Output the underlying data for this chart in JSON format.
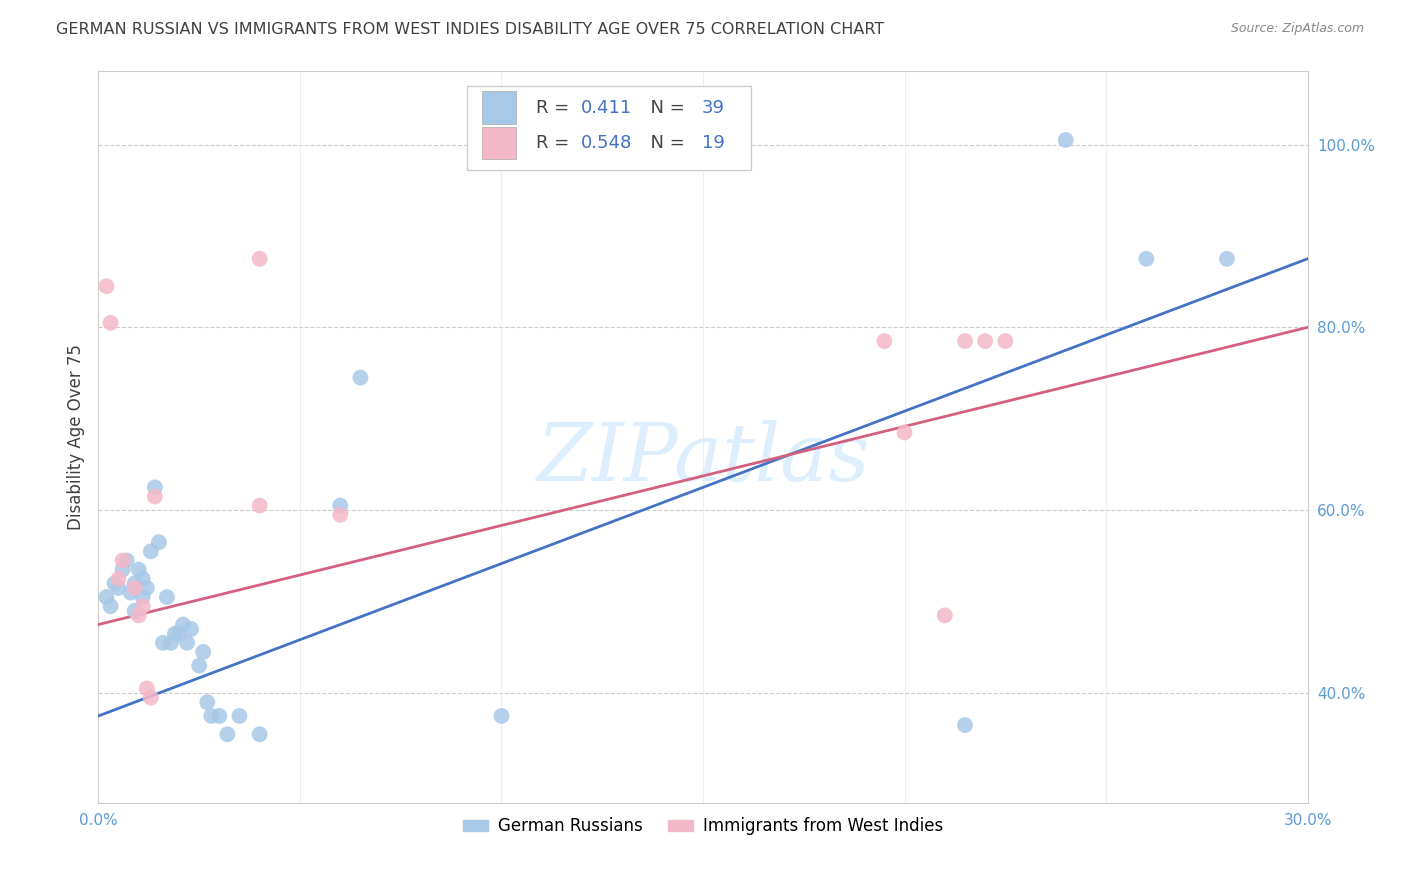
{
  "title": "GERMAN RUSSIAN VS IMMIGRANTS FROM WEST INDIES DISABILITY AGE OVER 75 CORRELATION CHART",
  "source": "Source: ZipAtlas.com",
  "ylabel": "Disability Age Over 75",
  "xlim": [
    0.0,
    0.3
  ],
  "ylim": [
    0.28,
    1.08
  ],
  "x_ticks": [
    0.0,
    0.05,
    0.1,
    0.15,
    0.2,
    0.25,
    0.3
  ],
  "y_ticks_right": [
    0.4,
    0.6,
    0.8,
    1.0
  ],
  "y_tick_labels_right": [
    "40.0%",
    "60.0%",
    "80.0%",
    "100.0%"
  ],
  "blue_color": "#a8c8e8",
  "pink_color": "#f4b8c8",
  "blue_line_color": "#4472c4",
  "pink_line_color": "#d46080",
  "title_color": "#404040",
  "axis_color": "#5b9bd5",
  "watermark_color": "#ddeeff",
  "blue_scatter_x": [
    0.002,
    0.003,
    0.004,
    0.005,
    0.006,
    0.007,
    0.008,
    0.009,
    0.009,
    0.01,
    0.011,
    0.011,
    0.012,
    0.013,
    0.014,
    0.015,
    0.016,
    0.017,
    0.018,
    0.019,
    0.02,
    0.021,
    0.022,
    0.023,
    0.025,
    0.026,
    0.027,
    0.028,
    0.03,
    0.032,
    0.035,
    0.04,
    0.06,
    0.065,
    0.1,
    0.215,
    0.24,
    0.26,
    0.28
  ],
  "blue_scatter_y": [
    0.505,
    0.495,
    0.52,
    0.515,
    0.535,
    0.545,
    0.51,
    0.52,
    0.49,
    0.535,
    0.505,
    0.525,
    0.515,
    0.555,
    0.625,
    0.565,
    0.455,
    0.505,
    0.455,
    0.465,
    0.465,
    0.475,
    0.455,
    0.47,
    0.43,
    0.445,
    0.39,
    0.375,
    0.375,
    0.355,
    0.375,
    0.355,
    0.605,
    0.745,
    0.375,
    0.365,
    1.005,
    0.875,
    0.875
  ],
  "pink_scatter_x": [
    0.002,
    0.003,
    0.005,
    0.006,
    0.009,
    0.01,
    0.011,
    0.012,
    0.013,
    0.014,
    0.04,
    0.04,
    0.06,
    0.195,
    0.2,
    0.21,
    0.215,
    0.22,
    0.225
  ],
  "pink_scatter_y": [
    0.845,
    0.805,
    0.525,
    0.545,
    0.515,
    0.485,
    0.495,
    0.405,
    0.395,
    0.615,
    0.605,
    0.875,
    0.595,
    0.785,
    0.685,
    0.485,
    0.785,
    0.785,
    0.785
  ],
  "blue_line_x": [
    0.0,
    0.3
  ],
  "blue_line_y": [
    0.375,
    0.875
  ],
  "pink_line_x": [
    0.0,
    0.3
  ],
  "pink_line_y": [
    0.475,
    0.8
  ]
}
